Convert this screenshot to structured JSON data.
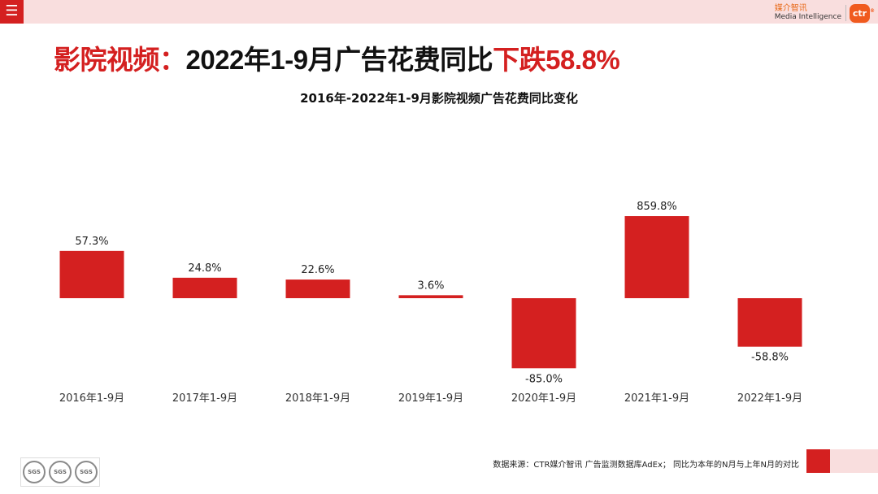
{
  "header": {
    "menu_icon_glyph": "☰",
    "brand_cn": "媒介智讯",
    "brand_en": "Media Intelligence",
    "brand_logo": "ctr",
    "brand_reg": "®"
  },
  "title": {
    "prefix": "影院视频：",
    "middle": "2022年1-9月广告花费同比",
    "highlight": "下跌58.8%"
  },
  "chart_data": {
    "type": "bar",
    "title": "2016年-2022年1-9月影院视频广告花费同比变化",
    "categories": [
      "2016年1-9月",
      "2017年1-9月",
      "2018年1-9月",
      "2019年1-9月",
      "2020年1-9月",
      "2021年1-9月",
      "2022年1-9月"
    ],
    "values": [
      57.3,
      24.8,
      22.6,
      3.6,
      -85.0,
      859.8,
      -58.8
    ],
    "labels": [
      "57.3%",
      "24.8%",
      "22.6%",
      "3.6%",
      "-85.0%",
      "859.8%",
      "-58.8%"
    ],
    "unit": "%",
    "xlabel": "",
    "ylabel": "",
    "grid": false,
    "legend": "none",
    "bar_color": "#d42020"
  },
  "footer": {
    "cert_marks": [
      "SGS",
      "SGS",
      "SGS"
    ],
    "note": "数据来源：CTR媒介智讯 广告监测数据库AdEx； 同比为本年的N月与上年N月的对比"
  }
}
